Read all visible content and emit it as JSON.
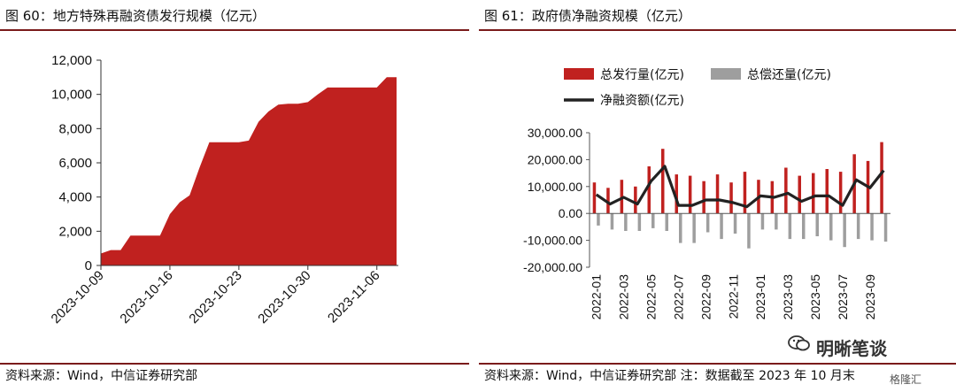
{
  "left": {
    "title": "图 60：地方特殊再融资债发行规模（亿元）",
    "source": "资料来源：Wind，中信证券研究部"
  },
  "right": {
    "title": "图 61：政府债净融资规模（亿元）",
    "source": "资料来源：Wind，中信证券研究部  注：数据截至 2023 年 10 月末"
  },
  "watermark": {
    "label": "明晰笔谈",
    "small_label": "格隆汇",
    "icon": "wechat-icon"
  },
  "colors": {
    "bar_red": "#c0211f",
    "bar_gray": "#9e9e9e",
    "line_black": "#222222",
    "frame": "#7a1b1b"
  },
  "chart_data": [
    {
      "type": "area",
      "title": "",
      "ylim": [
        0,
        12000
      ],
      "yticks": [
        "0",
        "2,000",
        "4,000",
        "6,000",
        "8,000",
        "10,000",
        "12,000"
      ],
      "xticks": [
        "2023-10-09",
        "2023-10-16",
        "2023-10-23",
        "2023-10-30",
        "2023-11-06"
      ],
      "x_day_index": [
        0,
        1,
        2,
        3,
        4,
        5,
        6,
        7,
        8,
        9,
        10,
        11,
        12,
        13,
        14,
        15,
        16,
        17,
        18,
        19,
        20,
        21,
        22,
        23,
        24,
        25,
        26,
        27,
        28,
        29,
        30
      ],
      "values": [
        700,
        900,
        900,
        1750,
        1750,
        1750,
        1750,
        3000,
        3700,
        4100,
        5700,
        7200,
        7200,
        7200,
        7200,
        7300,
        8400,
        9000,
        9400,
        9450,
        9450,
        9550,
        10000,
        10400,
        10400,
        10400,
        10400,
        10400,
        10400,
        11000,
        11000
      ],
      "grid": false
    },
    {
      "type": "bar",
      "title": "",
      "ylim": [
        -20000,
        30000
      ],
      "yticks": [
        "-20,000.00",
        "-10,000.00",
        "0.00",
        "10,000.00",
        "20,000.00",
        "30,000.00"
      ],
      "xticks": [
        "2022-01",
        "2022-03",
        "2022-05",
        "2022-07",
        "2022-09",
        "2022-11",
        "2023-01",
        "2023-03",
        "2023-05",
        "2023-07",
        "2023-09"
      ],
      "categories": [
        "2022-01",
        "2022-02",
        "2022-03",
        "2022-04",
        "2022-05",
        "2022-06",
        "2022-07",
        "2022-08",
        "2022-09",
        "2022-10",
        "2022-11",
        "2022-12",
        "2023-01",
        "2023-02",
        "2023-03",
        "2023-04",
        "2023-05",
        "2023-06",
        "2023-07",
        "2023-08",
        "2023-09",
        "2023-10"
      ],
      "legend_position": "top",
      "series": [
        {
          "name": "总发行量(亿元)",
          "type": "bar",
          "color": "#c0211f",
          "values": [
            11500,
            9500,
            12500,
            10000,
            17500,
            24000,
            14500,
            14000,
            12000,
            14500,
            11500,
            15500,
            12500,
            12000,
            17000,
            14000,
            15000,
            16500,
            15500,
            22000,
            19500,
            26500
          ]
        },
        {
          "name": "总偿还量(亿元)",
          "type": "bar",
          "color": "#9e9e9e",
          "values": [
            -4500,
            -6000,
            -6500,
            -6500,
            -5500,
            -6500,
            -11000,
            -11000,
            -7000,
            -9500,
            -7500,
            -13000,
            -6000,
            -6000,
            -9500,
            -9500,
            -8500,
            -10000,
            -12500,
            -9500,
            -10000,
            -10500
          ]
        },
        {
          "name": "净融资额(亿元)",
          "type": "line",
          "color": "#222222",
          "values": [
            7000,
            3500,
            6000,
            3500,
            12000,
            17500,
            3000,
            3000,
            5000,
            5000,
            4000,
            2500,
            6500,
            6000,
            7500,
            4500,
            6500,
            6500,
            3000,
            12500,
            9500,
            16000
          ]
        }
      ]
    }
  ]
}
